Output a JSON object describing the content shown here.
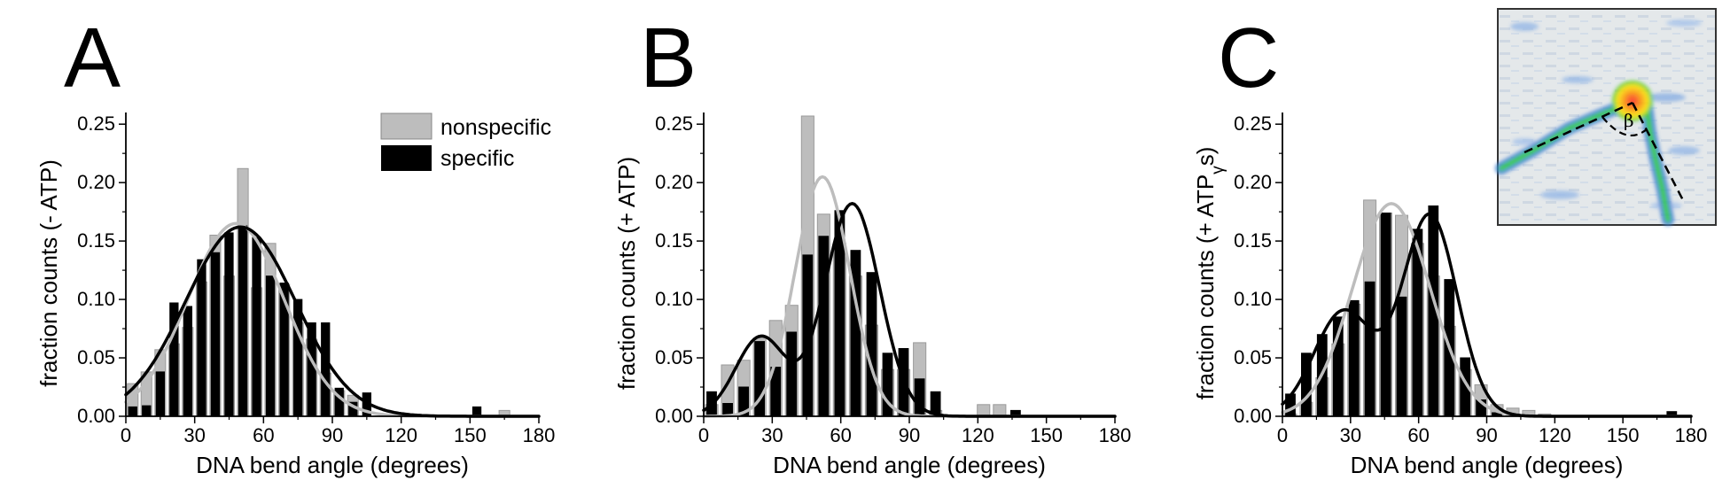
{
  "legend": [
    {
      "label": "nonspecific",
      "color": "#bdbdbd"
    },
    {
      "label": "specific",
      "color": "#000000"
    }
  ],
  "inset": {
    "angle_label": "β"
  },
  "chart_data": [
    {
      "type": "bar",
      "panel": "A",
      "xlabel": "DNA bend angle (degrees)",
      "ylabel": "fraction counts (- ATP)",
      "ylabel_sub": "",
      "ylabel_end": "",
      "xlim": [
        0,
        180
      ],
      "ylim": [
        0,
        0.26
      ],
      "xticks": [
        "0",
        "30",
        "60",
        "90",
        "120",
        "150",
        "180"
      ],
      "yticks": [
        "0.00",
        "0.05",
        "0.10",
        "0.15",
        "0.20",
        "0.25"
      ],
      "bin_width": 6,
      "bins": [
        3,
        9,
        15,
        21,
        27,
        33,
        39,
        45,
        51,
        57,
        63,
        69,
        75,
        81,
        87,
        93,
        99,
        105,
        111,
        117,
        123,
        129,
        135,
        141,
        147,
        153,
        159,
        165,
        171,
        177
      ],
      "series": [
        {
          "name": "nonspecific",
          "color": "#bdbdbd",
          "values": [
            0.028,
            0.038,
            0.057,
            0.062,
            0.076,
            0.115,
            0.155,
            0.12,
            0.212,
            0.11,
            0.148,
            0.113,
            0.08,
            0.066,
            0.037,
            0.022,
            0.018,
            0,
            0,
            0,
            0,
            0,
            0,
            0,
            0,
            0,
            0,
            0.005,
            0,
            0
          ]
        },
        {
          "name": "specific",
          "color": "#000000",
          "values": [
            0.008,
            0.009,
            0.038,
            0.097,
            0.094,
            0.134,
            0.14,
            0.157,
            0.163,
            0.153,
            0.12,
            0.114,
            0.1,
            0.08,
            0.08,
            0.024,
            0.012,
            0.02,
            0,
            0,
            0,
            0,
            0,
            0,
            0,
            0.008,
            0,
            0,
            0,
            0
          ]
        }
      ],
      "fits": [
        {
          "color": "#bdbdbd",
          "peaks": [
            {
              "amp": 0.165,
              "mu": 48,
              "sigma": 21
            }
          ]
        },
        {
          "color": "#000000",
          "peaks": [
            {
              "amp": 0.162,
              "mu": 50,
              "sigma": 24
            }
          ]
        }
      ]
    },
    {
      "type": "bar",
      "panel": "B",
      "xlabel": "DNA bend angle (degrees)",
      "ylabel": "fraction counts (+ ATP)",
      "ylabel_sub": "",
      "ylabel_end": "",
      "xlim": [
        0,
        180
      ],
      "ylim": [
        0,
        0.26
      ],
      "xticks": [
        "0",
        "30",
        "60",
        "90",
        "120",
        "150",
        "180"
      ],
      "yticks": [
        "0.00",
        "0.05",
        "0.10",
        "0.15",
        "0.20",
        "0.25"
      ],
      "bin_width": 7,
      "bins": [
        3.5,
        10.5,
        17.5,
        24.5,
        31.5,
        38.5,
        45.5,
        52.5,
        59.5,
        66.5,
        73.5,
        80.5,
        87.5,
        94.5,
        101.5,
        108.5,
        115.5,
        122.5,
        129.5,
        136.5
      ],
      "series": [
        {
          "name": "nonspecific",
          "color": "#bdbdbd",
          "values": [
            0.01,
            0.044,
            0.048,
            0.067,
            0.082,
            0.095,
            0.257,
            0.173,
            0.148,
            0.12,
            0.078,
            0.04,
            0.04,
            0.063,
            0.005,
            0,
            0,
            0.01,
            0.01,
            0
          ]
        },
        {
          "name": "specific",
          "color": "#000000",
          "values": [
            0.021,
            0.011,
            0.025,
            0.064,
            0.042,
            0.072,
            0.138,
            0.154,
            0.176,
            0.142,
            0.123,
            0.054,
            0.058,
            0.032,
            0.021,
            0,
            0,
            0,
            0,
            0.005
          ]
        }
      ],
      "fits": [
        {
          "color": "#bdbdbd",
          "peaks": [
            {
              "amp": 0.205,
              "mu": 52,
              "sigma": 12
            }
          ]
        },
        {
          "color": "#000000",
          "peaks": [
            {
              "amp": 0.068,
              "mu": 25,
              "sigma": 11
            },
            {
              "amp": 0.182,
              "mu": 65,
              "sigma": 12
            }
          ]
        }
      ]
    },
    {
      "type": "bar",
      "panel": "C",
      "xlabel": "DNA bend angle (degrees)",
      "ylabel": "fraction counts (+ ATP",
      "ylabel_sub": "γ",
      "ylabel_end": "s)",
      "xlim": [
        0,
        180
      ],
      "ylim": [
        0,
        0.26
      ],
      "xticks": [
        "0",
        "30",
        "60",
        "90",
        "120",
        "150",
        "180"
      ],
      "yticks": [
        "0.00",
        "0.05",
        "0.10",
        "0.15",
        "0.20",
        "0.25"
      ],
      "bin_width": 7,
      "bins": [
        3.5,
        10.5,
        17.5,
        24.5,
        31.5,
        38.5,
        45.5,
        52.5,
        59.5,
        66.5,
        73.5,
        80.5,
        87.5,
        94.5,
        101.5,
        108.5,
        115.5,
        122.5,
        129.5,
        136.5,
        143.5,
        150.5,
        157.5,
        164.5,
        171.5,
        178.5
      ],
      "series": [
        {
          "name": "nonspecific",
          "color": "#bdbdbd",
          "values": [
            0.002,
            0.012,
            0.033,
            0.062,
            0.096,
            0.185,
            0.174,
            0.172,
            0.148,
            0.12,
            0.077,
            0.04,
            0.027,
            0.01,
            0.007,
            0.005,
            0.002,
            0,
            0,
            0,
            0,
            0,
            0,
            0,
            0,
            0
          ]
        },
        {
          "name": "specific",
          "color": "#000000",
          "values": [
            0.019,
            0.054,
            0.07,
            0.085,
            0.099,
            0.115,
            0.174,
            0.102,
            0.16,
            0.18,
            0.117,
            0.05,
            0.014,
            0.003,
            0,
            0,
            0,
            0,
            0,
            0,
            0,
            0,
            0,
            0,
            0.004,
            0
          ]
        }
      ],
      "fits": [
        {
          "color": "#bdbdbd",
          "peaks": [
            {
              "amp": 0.182,
              "mu": 48,
              "sigma": 17
            }
          ]
        },
        {
          "color": "#000000",
          "peaks": [
            {
              "amp": 0.09,
              "mu": 27,
              "sigma": 13
            },
            {
              "amp": 0.172,
              "mu": 65,
              "sigma": 12
            }
          ]
        }
      ]
    }
  ]
}
